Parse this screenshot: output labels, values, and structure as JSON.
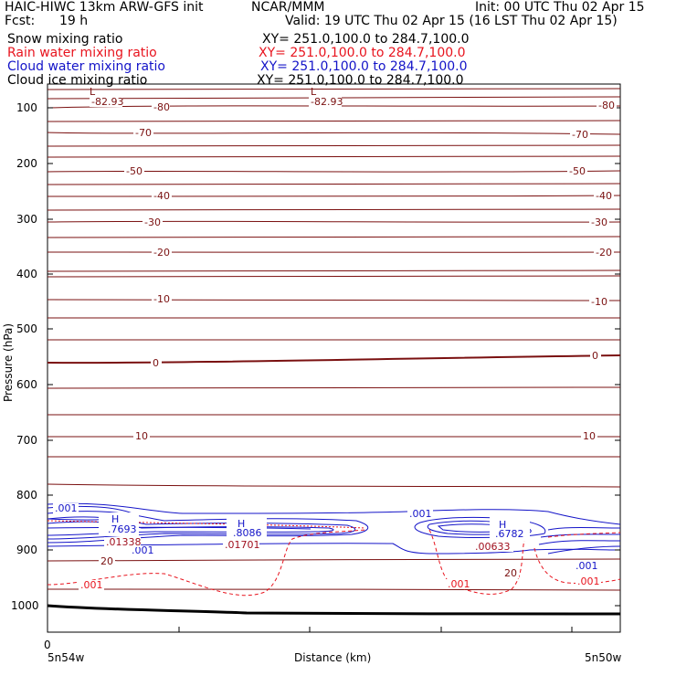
{
  "header": {
    "model": "HAIC-HIWC 13km ARW-GFS init",
    "center": "NCAR/MMM",
    "init": "Init: 00 UTC Thu 02 Apr 15",
    "fcst_label": "Fcst:",
    "fcst_value": "19 h",
    "valid": "Valid: 19 UTC Thu 02 Apr 15 (16 LST Thu 02 Apr 15)",
    "fields": [
      {
        "label": "Snow mixing ratio",
        "xy": "XY= 251.0,100.0 to 284.7,100.0",
        "color": "#000000"
      },
      {
        "label": "Rain water mixing ratio",
        "xy": "XY= 251.0,100.0 to 284.7,100.0",
        "color": "#e8141e"
      },
      {
        "label": "Cloud water mixing ratio",
        "xy": "XY= 251.0,100.0 to 284.7,100.0",
        "color": "#1414c8"
      },
      {
        "label": "Cloud ice mixing ratio",
        "xy": "XY= 251.0,100.0 to 284.7,100.0",
        "color": "#000000"
      }
    ]
  },
  "chart_data": {
    "type": "cross-section contour",
    "xlabel": "Distance (km)",
    "ylabel": "Pressure (hPa)",
    "x_tick_labels": [
      "0"
    ],
    "x_end_labels": [
      "5n54w",
      "5n50w"
    ],
    "y_ticks": [
      100,
      200,
      300,
      400,
      500,
      600,
      700,
      800,
      900,
      1000
    ],
    "temperature_contours": {
      "color": "#7a1010",
      "labels": [
        {
          "value": "-82.93",
          "side": "left"
        },
        {
          "value": "-82.93",
          "side": "middle"
        },
        {
          "value": "-80",
          "side": "left"
        },
        {
          "value": "-80",
          "side": "right"
        },
        {
          "value": "-70",
          "side": "left"
        },
        {
          "value": "-70",
          "side": "right"
        },
        {
          "value": "-50",
          "side": "left"
        },
        {
          "value": "-50",
          "side": "right"
        },
        {
          "value": "-40",
          "side": "left"
        },
        {
          "value": "-40",
          "side": "right"
        },
        {
          "value": "-30",
          "side": "left"
        },
        {
          "value": "-30",
          "side": "right"
        },
        {
          "value": "-20",
          "side": "left"
        },
        {
          "value": "-20",
          "side": "right"
        },
        {
          "value": "-10",
          "side": "left"
        },
        {
          "value": "-10",
          "side": "right"
        },
        {
          "value": "0",
          "side": "left"
        },
        {
          "value": "0",
          "side": "right"
        },
        {
          "value": "10",
          "side": "left"
        },
        {
          "value": "10",
          "side": "right"
        },
        {
          "value": "20",
          "side": "left"
        },
        {
          "value": "20",
          "side": "right"
        }
      ],
      "low_markers": [
        "L",
        "L"
      ]
    },
    "cloud_water": {
      "color": "#1414c8",
      "labels": [
        ".001",
        ".7693",
        ".001",
        ".8086",
        ".001",
        ".6782",
        ".001"
      ],
      "high_markers": [
        "H",
        "H",
        "H"
      ]
    },
    "rain_water": {
      "color": "#e8141e",
      "labels": [
        ".01338",
        ".01701",
        ".00633",
        ".001",
        ".001",
        ".001"
      ]
    }
  }
}
